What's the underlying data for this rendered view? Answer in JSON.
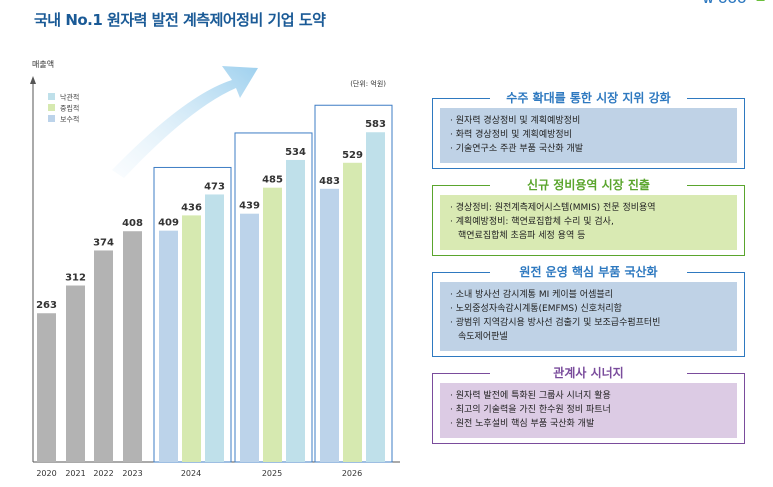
{
  "page": {
    "title": "국내 No.1 원자력 발전 계측제어정비 기업 도약",
    "logo_icon": "company-logo-icon"
  },
  "chart_data": {
    "type": "bar",
    "ylabel": "매출액",
    "unit_note": "(단위: 억원)",
    "legend": [
      {
        "name": "낙관적",
        "color": "#bfe0ea"
      },
      {
        "name": "중립적",
        "color": "#d6e9b0"
      },
      {
        "name": "보수적",
        "color": "#bcd3ea"
      }
    ],
    "actual": {
      "color": "#b3b3b3",
      "categories": [
        "2020",
        "2021",
        "2022",
        "2023"
      ],
      "values": [
        263,
        312,
        374,
        408
      ]
    },
    "forecast": {
      "categories": [
        "2024",
        "2025",
        "2026"
      ],
      "series": [
        {
          "name": "보수적",
          "color": "#bcd3ea",
          "values": [
            409,
            439,
            483
          ]
        },
        {
          "name": "중립적",
          "color": "#d6e9b0",
          "values": [
            436,
            485,
            529
          ]
        },
        {
          "name": "낙관적",
          "color": "#bfe0ea",
          "values": [
            473,
            534,
            583
          ]
        }
      ]
    },
    "ylim": [
      0,
      640
    ],
    "grid": false,
    "legend_position": "top-left"
  },
  "sections": [
    {
      "title": "수주 확대를 통한 시장 지위 강화",
      "color": "#2e79c0",
      "box": "#bfd2e6",
      "items": [
        "원자력 경상정비 및 계획예방정비",
        "화력 경상정비 및 계획예방정비",
        "기술연구소 주관 부품 국산화 개발"
      ]
    },
    {
      "title": "신규 정비용역 시장 진출",
      "color": "#5aa52d",
      "box": "#d9eab3",
      "items": [
        "경상정비: 원전계측제어시스템(MMIS) 전문 정비용역",
        "계획예방정비: 핵연료집합체 수리 및 검사,",
        "핵연료집합체 초음파 세정 용역 등"
      ]
    },
    {
      "title": "원전 운영 핵심 부품 국산화",
      "color": "#2e79c0",
      "box": "#bfd2e6",
      "items": [
        "소내 방사선 감시계통 MI 케이블 어셈블리",
        "노외중성자속감시계통(EMFMS) 신호처리함",
        "광범위 지역감시용 방사선 검출기 및 보조급수펌프터빈",
        "속도제어판넬"
      ]
    },
    {
      "title": "관계사 시너지",
      "color": "#7a4c9c",
      "box": "#dccbe4",
      "items": [
        "원자력 발전에 특화된 그룹사 시너지 활용",
        "최고의 기술력을 가진 한수원 정비 파트너",
        "원전 노후설비 핵심 부품 국산화 개발"
      ]
    }
  ]
}
